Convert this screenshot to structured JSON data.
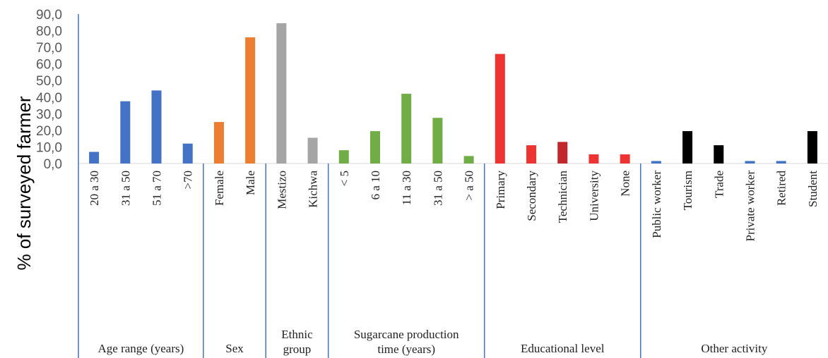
{
  "chart_data": {
    "type": "bar",
    "title": "",
    "ylabel": "% of surveyed farmer",
    "ylim": [
      0,
      90
    ],
    "yticks": [
      "0,0",
      "10,0",
      "20,0",
      "30,0",
      "40,0",
      "50,0",
      "60,0",
      "70,0",
      "80,0",
      "90,0"
    ],
    "grid": false,
    "groups": [
      {
        "name": "Age range (years)",
        "name_lines": [
          "Age range (years)"
        ],
        "color": "#4472C4",
        "categories": [
          {
            "label": "20 a 30",
            "value": 7
          },
          {
            "label": "31 a 50",
            "value": 37.5
          },
          {
            "label": "51 a 70",
            "value": 44
          },
          {
            "label": ">70",
            "value": 12
          }
        ]
      },
      {
        "name": "Sex",
        "name_lines": [
          "Sex"
        ],
        "color": "#ED7D31",
        "categories": [
          {
            "label": "Female",
            "value": 25
          },
          {
            "label": "Male",
            "value": 76
          }
        ]
      },
      {
        "name": "Ethnic group",
        "name_lines": [
          "Ethnic",
          "group"
        ],
        "color": "#A5A5A5",
        "categories": [
          {
            "label": "Mestizo",
            "value": 84.5
          },
          {
            "label": "Kichwa",
            "value": 15.5
          }
        ]
      },
      {
        "name": "Sugarcane production time (years)",
        "name_lines": [
          "Sugarcane production",
          "time (years)"
        ],
        "color": "#70AD47",
        "categories": [
          {
            "label": "< 5",
            "value": 8
          },
          {
            "label": "6 a 10",
            "value": 19.5
          },
          {
            "label": "11 a 30",
            "value": 42
          },
          {
            "label": "31 a 50",
            "value": 27.5
          },
          {
            "label": "> a 50",
            "value": 4.5
          }
        ]
      },
      {
        "name": "Educational level",
        "name_lines": [
          "Educational level"
        ],
        "color": "#EE3333",
        "categories": [
          {
            "label": "Primary",
            "value": 66
          },
          {
            "label": "Secondary",
            "value": 11
          },
          {
            "label": "Technician",
            "value": 13,
            "color": "#C0282D"
          },
          {
            "label": "University",
            "value": 5.5
          },
          {
            "label": "None",
            "value": 5.5
          }
        ]
      },
      {
        "name": "Other activity",
        "name_lines": [
          "Other activity"
        ],
        "color": "#000000",
        "categories": [
          {
            "label": "Public worker",
            "value": 1.5,
            "color": "#4472C4"
          },
          {
            "label": "Tourism",
            "value": 19.5
          },
          {
            "label": "Trade",
            "value": 11
          },
          {
            "label": "Private worker",
            "value": 1.5,
            "color": "#4472C4"
          },
          {
            "label": "Retired",
            "value": 1.5,
            "color": "#4472C4"
          },
          {
            "label": "Student",
            "value": 19.5
          }
        ]
      }
    ]
  }
}
